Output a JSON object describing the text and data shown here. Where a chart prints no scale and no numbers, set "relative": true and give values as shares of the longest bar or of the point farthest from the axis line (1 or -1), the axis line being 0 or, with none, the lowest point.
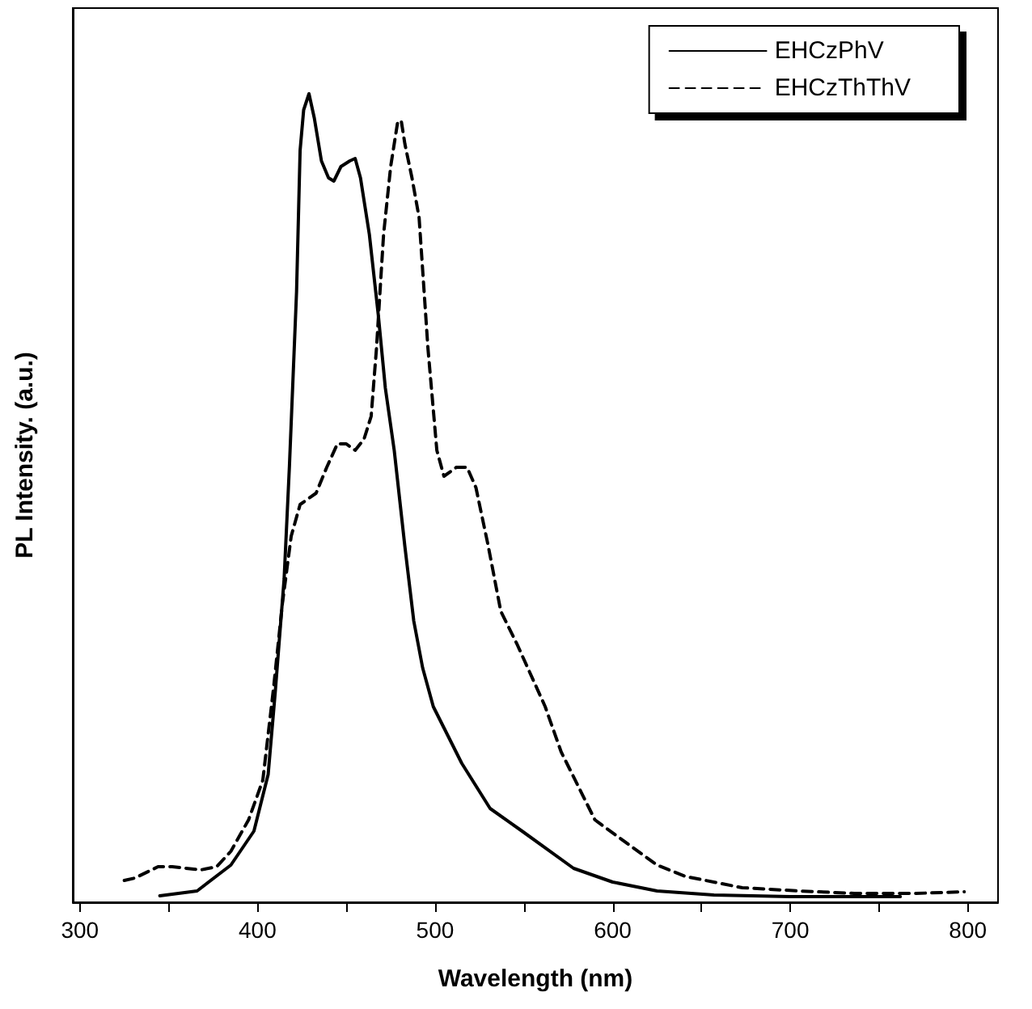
{
  "chart_data": {
    "type": "line",
    "relative": true,
    "xlabel": "Wavelength (nm)",
    "ylabel": "PL Intensity. (a.u.)",
    "xlim": [
      296,
      817
    ],
    "xticks": [
      300,
      {
        "value": 350,
        "label": null
      },
      400,
      {
        "value": 450,
        "label": null
      },
      500,
      {
        "value": 550,
        "label": null
      },
      600,
      {
        "value": 650,
        "label": null
      },
      700,
      {
        "value": 750,
        "label": null
      },
      800
    ],
    "legend": "top right",
    "grid": false,
    "marker": "none",
    "series": [
      {
        "name": "EHCzPhV",
        "color": "#000000",
        "line_style": "solid",
        "x": [
          345,
          366,
          385,
          398,
          406,
          410,
          415,
          418,
          422,
          424,
          426,
          429,
          432,
          436,
          440,
          443,
          447,
          452,
          455,
          458,
          463,
          468,
          472,
          477,
          483,
          488,
          493,
          499,
          515,
          531,
          549,
          578,
          600,
          625,
          657,
          700,
          762
        ],
        "values": [
          0.008,
          0.014,
          0.046,
          0.088,
          0.158,
          0.26,
          0.4,
          0.54,
          0.755,
          0.93,
          0.98,
          1.0,
          0.97,
          0.917,
          0.896,
          0.892,
          0.91,
          0.917,
          0.92,
          0.896,
          0.826,
          0.727,
          0.636,
          0.559,
          0.44,
          0.348,
          0.29,
          0.242,
          0.172,
          0.116,
          0.088,
          0.042,
          0.025,
          0.014,
          0.009,
          0.007,
          0.007
        ]
      },
      {
        "name": "EHCzThThV",
        "color": "#000000",
        "line_style": "dashed",
        "x": [
          325,
          331,
          344,
          352,
          368,
          377,
          385,
          395,
          403,
          409,
          414,
          419,
          424,
          433,
          439,
          445,
          450,
          455,
          460,
          464,
          467,
          471,
          475,
          479,
          481,
          483,
          487,
          491,
          496,
          501,
          505,
          512,
          518,
          523,
          530,
          537,
          546,
          562,
          571,
          590,
          603,
          625,
          641,
          673,
          705,
          736,
          771,
          798
        ],
        "values": [
          0.027,
          0.03,
          0.044,
          0.044,
          0.04,
          0.044,
          0.063,
          0.102,
          0.151,
          0.264,
          0.369,
          0.453,
          0.492,
          0.506,
          0.538,
          0.567,
          0.567,
          0.559,
          0.573,
          0.601,
          0.685,
          0.826,
          0.91,
          0.966,
          0.966,
          0.938,
          0.896,
          0.847,
          0.685,
          0.559,
          0.527,
          0.538,
          0.538,
          0.513,
          0.44,
          0.36,
          0.32,
          0.242,
          0.186,
          0.102,
          0.081,
          0.046,
          0.032,
          0.018,
          0.014,
          0.011,
          0.011,
          0.013
        ]
      }
    ]
  }
}
